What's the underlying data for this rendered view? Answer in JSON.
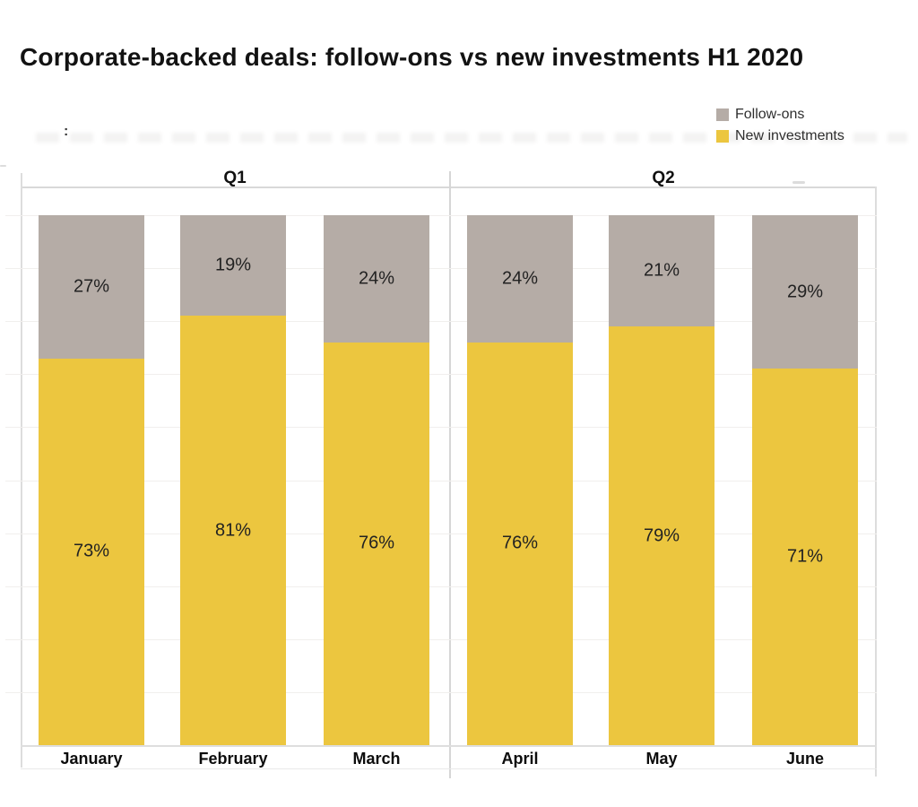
{
  "title": "Corporate-backed deals: follow-ons vs new investments H1 2020",
  "artifacts": {
    "stray_colon": ":"
  },
  "colors": {
    "follow_ons": "#b5aca6",
    "new_investments": "#ecc63f",
    "grid": "#f1efed",
    "frame": "#d9d9d9",
    "title_text": "#121212"
  },
  "legend": {
    "position": "top-right",
    "items": [
      {
        "label": "Follow-ons",
        "color": "#b5aca6"
      },
      {
        "label": "New investments",
        "color": "#ecc63f"
      }
    ]
  },
  "chart_data": {
    "type": "bar",
    "stacked": true,
    "value_format": "percent",
    "title": "Corporate-backed deals: follow-ons vs new investments H1 2020",
    "group_labels": [
      "Q1",
      "Q2"
    ],
    "category_groups": {
      "Q1": [
        "January",
        "February",
        "March"
      ],
      "Q2": [
        "April",
        "May",
        "June"
      ]
    },
    "categories": [
      "January",
      "February",
      "March",
      "April",
      "May",
      "June"
    ],
    "series": [
      {
        "name": "Follow-ons",
        "color": "#b5aca6",
        "values": [
          27,
          19,
          24,
          24,
          21,
          29
        ]
      },
      {
        "name": "New investments",
        "color": "#ecc63f",
        "values": [
          73,
          81,
          76,
          76,
          79,
          71
        ]
      }
    ],
    "ylim": [
      0,
      100
    ],
    "grid": "faint horizontal gridlines every 10%",
    "legend_position": "top-right",
    "data_labels": "percentage shown centered inside each segment",
    "x_axis": "months grouped by quarter with vertical divider between Q1 and Q2"
  }
}
